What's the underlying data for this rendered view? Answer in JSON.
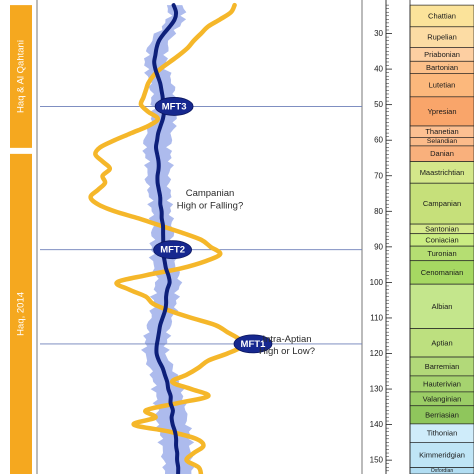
{
  "chart_data": {
    "type": "line",
    "y_axis": {
      "unit": "Ma",
      "range": [
        22,
        155
      ],
      "inverted": true,
      "ticks": [
        30,
        40,
        50,
        60,
        70,
        80,
        90,
        100,
        110,
        120,
        130,
        140,
        150
      ]
    },
    "reference_curve": {
      "color": "#f5b72a",
      "points": [
        [
          22,
          58
        ],
        [
          24,
          55
        ],
        [
          26,
          46
        ],
        [
          28,
          36
        ],
        [
          30,
          30
        ],
        [
          32,
          24
        ],
        [
          34,
          19
        ],
        [
          36,
          12
        ],
        [
          38,
          4
        ],
        [
          40,
          -4
        ],
        [
          42,
          -10
        ],
        [
          44,
          -14
        ],
        [
          46,
          -16
        ],
        [
          48,
          -18
        ],
        [
          50,
          -20
        ],
        [
          52,
          -14
        ],
        [
          54,
          -6
        ],
        [
          56,
          -14
        ],
        [
          58,
          -28
        ],
        [
          60,
          -42
        ],
        [
          62,
          -54
        ],
        [
          64,
          -58
        ],
        [
          66,
          -52
        ],
        [
          68,
          -46
        ],
        [
          70,
          -52
        ],
        [
          72,
          -50
        ],
        [
          74,
          -56
        ],
        [
          76,
          -62
        ],
        [
          78,
          -56
        ],
        [
          80,
          -42
        ],
        [
          82,
          -22
        ],
        [
          84,
          -4
        ],
        [
          86,
          14
        ],
        [
          88,
          30
        ],
        [
          90,
          38
        ],
        [
          92,
          46
        ],
        [
          94,
          34
        ],
        [
          96,
          14
        ],
        [
          98,
          -16
        ],
        [
          100,
          -40
        ],
        [
          102,
          -30
        ],
        [
          104,
          -16
        ],
        [
          106,
          -10
        ],
        [
          108,
          4
        ],
        [
          110,
          22
        ],
        [
          112,
          42
        ],
        [
          114,
          52
        ],
        [
          116,
          62
        ],
        [
          118,
          64
        ],
        [
          120,
          52
        ],
        [
          122,
          36
        ],
        [
          124,
          28
        ],
        [
          126,
          18
        ],
        [
          128,
          6
        ],
        [
          130,
          22
        ],
        [
          132,
          36
        ],
        [
          134,
          10
        ],
        [
          136,
          -16
        ],
        [
          138,
          -8
        ],
        [
          140,
          -26
        ],
        [
          142,
          4
        ],
        [
          144,
          26
        ],
        [
          146,
          32
        ],
        [
          148,
          24
        ],
        [
          150,
          18
        ],
        [
          152,
          28
        ],
        [
          154,
          30
        ]
      ]
    },
    "mean_curve": {
      "color": "#0d1f7a",
      "points": [
        [
          22,
          8
        ],
        [
          24,
          10
        ],
        [
          26,
          9
        ],
        [
          28,
          5
        ],
        [
          30,
          0
        ],
        [
          32,
          -4
        ],
        [
          34,
          -6
        ],
        [
          36,
          -7
        ],
        [
          38,
          -8
        ],
        [
          40,
          -7
        ],
        [
          42,
          -5
        ],
        [
          44,
          -3
        ],
        [
          46,
          -2
        ],
        [
          48,
          -1
        ],
        [
          50,
          -1
        ],
        [
          52,
          0
        ],
        [
          54,
          -1
        ],
        [
          56,
          -3
        ],
        [
          58,
          -5
        ],
        [
          60,
          -6
        ],
        [
          62,
          -7
        ],
        [
          64,
          -6
        ],
        [
          66,
          -5
        ],
        [
          68,
          -5
        ],
        [
          70,
          -6
        ],
        [
          72,
          -6
        ],
        [
          74,
          -5
        ],
        [
          76,
          -4
        ],
        [
          78,
          -4
        ],
        [
          80,
          -3
        ],
        [
          82,
          -3
        ],
        [
          84,
          -2
        ],
        [
          86,
          -2
        ],
        [
          88,
          -2
        ],
        [
          90,
          -2
        ],
        [
          92,
          -2
        ],
        [
          94,
          -1
        ],
        [
          96,
          0
        ],
        [
          98,
          2
        ],
        [
          100,
          3
        ],
        [
          102,
          1
        ],
        [
          104,
          0
        ],
        [
          106,
          0
        ],
        [
          108,
          -1
        ],
        [
          110,
          -3
        ],
        [
          112,
          -5
        ],
        [
          114,
          -6
        ],
        [
          116,
          -7
        ],
        [
          118,
          -8
        ],
        [
          120,
          -8
        ],
        [
          122,
          -6
        ],
        [
          124,
          -3
        ],
        [
          126,
          -1
        ],
        [
          128,
          1
        ],
        [
          130,
          2
        ],
        [
          132,
          4
        ],
        [
          134,
          4
        ],
        [
          136,
          6
        ],
        [
          138,
          5
        ],
        [
          140,
          6
        ],
        [
          142,
          8
        ],
        [
          144,
          9
        ],
        [
          146,
          9
        ],
        [
          148,
          10
        ],
        [
          150,
          10
        ],
        [
          152,
          11
        ],
        [
          154,
          11
        ]
      ]
    },
    "envelope": {
      "color": "#a9b7ec",
      "half_width": [
        [
          22,
          6
        ],
        [
          40,
          9
        ],
        [
          60,
          11
        ],
        [
          80,
          8
        ],
        [
          100,
          10
        ],
        [
          120,
          9
        ],
        [
          140,
          13
        ],
        [
          154,
          11
        ]
      ]
    },
    "flooding_surfaces": [
      {
        "name": "MFT3",
        "age": 50.5
      },
      {
        "name": "MFT2",
        "age": 90.8
      },
      {
        "name": "MFT1",
        "age": 117.3
      }
    ],
    "annotations": [
      {
        "text": "Campanian",
        "age": 75
      },
      {
        "text": "High or Falling?",
        "age": 78.5
      },
      {
        "text": "Intra-Aptian",
        "age": 116
      },
      {
        "text": "High or Low?",
        "age": 119.5
      }
    ],
    "sources": [
      {
        "label": "Haq & Al Qahtani",
        "from": 22,
        "to": 63
      },
      {
        "label": "Haq, 2014",
        "from": 63,
        "to": 155
      }
    ],
    "stages": [
      {
        "name": "Chattian",
        "from": 22,
        "to": 28.1,
        "color": "#fbe39a"
      },
      {
        "name": "Rupelian",
        "from": 28.1,
        "to": 33.9,
        "color": "#fcdca4"
      },
      {
        "name": "Priabonian",
        "from": 33.9,
        "to": 37.8,
        "color": "#fdcfa2"
      },
      {
        "name": "Bartonian",
        "from": 37.8,
        "to": 41.2,
        "color": "#fcc08a"
      },
      {
        "name": "Lutetian",
        "from": 41.2,
        "to": 47.8,
        "color": "#fcb87c"
      },
      {
        "name": "Ypresian",
        "from": 47.8,
        "to": 56,
        "color": "#f9a56a"
      },
      {
        "name": "Thanetian",
        "from": 56,
        "to": 59.2,
        "color": "#fcc092"
      },
      {
        "name": "Selandian",
        "from": 59.2,
        "to": 61.6,
        "color": "#fbbb8a"
      },
      {
        "name": "Danian",
        "from": 61.6,
        "to": 66,
        "color": "#f9b07c"
      },
      {
        "name": "Maastrichtian",
        "from": 66,
        "to": 72.1,
        "color": "#d4e78a"
      },
      {
        "name": "Campanian",
        "from": 72.1,
        "to": 83.6,
        "color": "#c6e07a"
      },
      {
        "name": "Santonian",
        "from": 83.6,
        "to": 86.3,
        "color": "#d6ea8c"
      },
      {
        "name": "Coniacian",
        "from": 86.3,
        "to": 89.8,
        "color": "#caec82"
      },
      {
        "name": "Turonian",
        "from": 89.8,
        "to": 93.9,
        "color": "#b5de72"
      },
      {
        "name": "Cenomanian",
        "from": 93.9,
        "to": 100.5,
        "color": "#a6d862"
      },
      {
        "name": "Albian",
        "from": 100.5,
        "to": 113,
        "color": "#c4e68c"
      },
      {
        "name": "Aptian",
        "from": 113,
        "to": 121,
        "color": "#bde07f"
      },
      {
        "name": "Barremian",
        "from": 121,
        "to": 126.3,
        "color": "#b2d979"
      },
      {
        "name": "Hauterivian",
        "from": 126.3,
        "to": 130.8,
        "color": "#a6d36f"
      },
      {
        "name": "Valanginian",
        "from": 130.8,
        "to": 134.7,
        "color": "#9bcd66"
      },
      {
        "name": "Berriasian",
        "from": 134.7,
        "to": 139.8,
        "color": "#8fc65c"
      },
      {
        "name": "Tithonian",
        "from": 139.8,
        "to": 145,
        "color": "#cfecfa"
      },
      {
        "name": "Kimmeridgian",
        "from": 145,
        "to": 152.1,
        "color": "#bfe5f6"
      },
      {
        "name": "Oxfordian",
        "from": 152.1,
        "to": 155,
        "color": "#b1ddf2"
      }
    ]
  }
}
